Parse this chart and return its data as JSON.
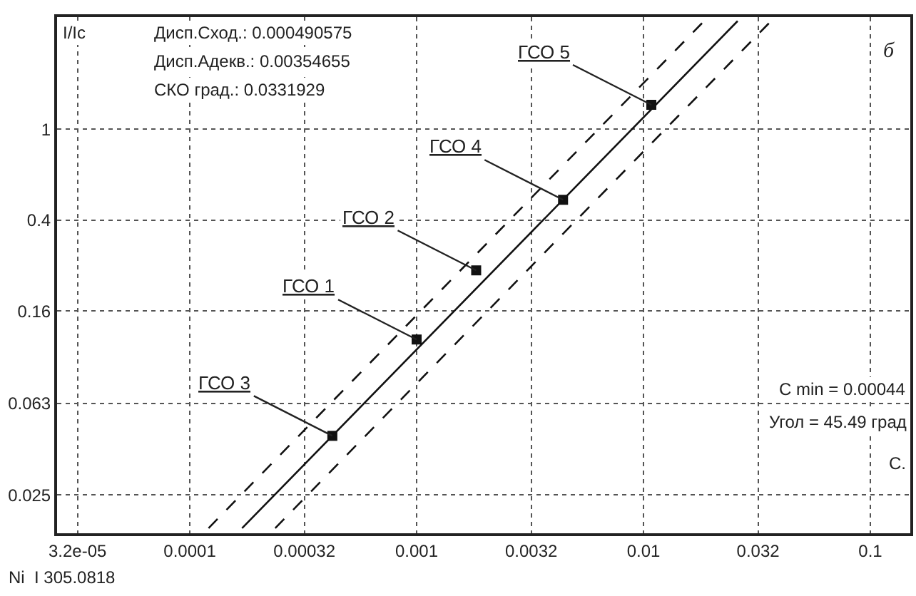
{
  "chart_data": {
    "type": "scatter",
    "ylabel": "I/Ic",
    "log": "xy",
    "xlim": [
      2.6e-05,
      0.15
    ],
    "ylim": [
      0.017,
      3.1
    ],
    "xticks": [
      {
        "value": 3.2e-05,
        "label": "3.2e-05"
      },
      0.0001,
      0.00032,
      0.001,
      0.0032,
      0.01,
      0.032,
      0.1
    ],
    "yticks": [
      0.025,
      0.063,
      0.16,
      0.4,
      1
    ],
    "grid": true,
    "series": [
      {
        "color": "#111111",
        "marker": "square",
        "x": [
          0.000425,
          0.001,
          0.00183,
          0.00442,
          0.01083
        ],
        "values": [
          0.0454,
          0.12,
          0.241,
          0.491,
          1.28
        ]
      },
      {
        "type": "line",
        "color": "#111111",
        "line_style": "solid",
        "marker": "none",
        "x": [
          0.00017,
          0.026
        ],
        "values": [
          0.0179,
          2.98
        ]
      },
      {
        "type": "line",
        "color": "#111111",
        "line_style": "dashed",
        "marker": "none",
        "x": [
          0.000121,
          0.0185
        ],
        "values": [
          0.0179,
          2.98
        ]
      },
      {
        "type": "line",
        "color": "#111111",
        "line_style": "dashed",
        "marker": "none",
        "x": [
          0.000238,
          0.0365
        ],
        "values": [
          0.0179,
          2.98
        ]
      }
    ],
    "annotations": [
      "Дисп.Сход.: 0.000490575",
      "Дисп.Адекв.: 0.00354655",
      "СКО град.: 0.0331929",
      {
        "text": "ГСО 3",
        "x": 0.000425,
        "y": 0.0454
      },
      {
        "text": "ГСО 1",
        "x": 0.001,
        "y": 0.12
      },
      {
        "text": "ГСО 2",
        "x": 0.00183,
        "y": 0.241
      },
      {
        "text": "ГСО 4",
        "x": 0.00442,
        "y": 0.491
      },
      {
        "text": "ГСО 5",
        "x": 0.01083,
        "y": 1.28
      },
      "б",
      "C min = 0.00044",
      "Угол = 45.49 град",
      "C.",
      "Ni  I 305.0818"
    ]
  }
}
